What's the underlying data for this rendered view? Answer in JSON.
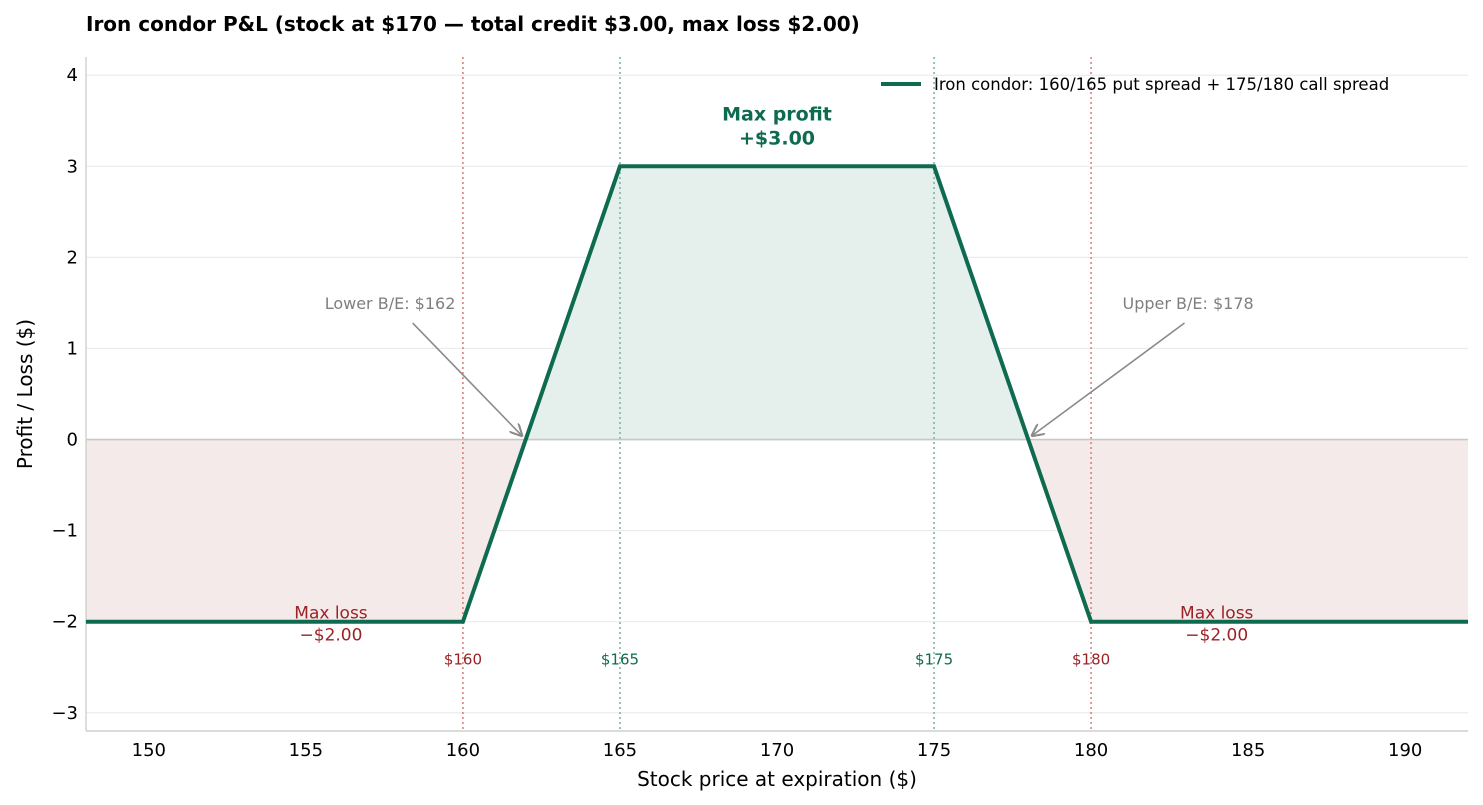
{
  "chart_data": {
    "type": "line",
    "title": "Iron condor P&L  (stock at $170 — total credit $3.00, max loss $2.00)",
    "xlabel": "Stock price at expiration ($)",
    "ylabel": "Profit / Loss ($)",
    "xlim": [
      148,
      192
    ],
    "ylim": [
      -3.2,
      4.2
    ],
    "xticks": [
      "150",
      "155",
      "160",
      "165",
      "170",
      "175",
      "180",
      "185",
      "190"
    ],
    "yticks": [
      "4",
      "3",
      "2",
      "1",
      "0",
      "−1",
      "−2",
      "−3"
    ],
    "grid": "horizontal",
    "legend_position": "top-right",
    "series": [
      {
        "name": "Iron condor: 160/165 put spread + 175/180 call spread",
        "color": "#0e6b50",
        "points": [
          [
            148,
            -2
          ],
          [
            160,
            -2
          ],
          [
            165,
            3
          ],
          [
            175,
            3
          ],
          [
            180,
            -2
          ],
          [
            192,
            -2
          ]
        ]
      }
    ],
    "shading": {
      "profit_color": "#e5f0ec",
      "loss_color": "#f5eaea"
    },
    "strikes": [
      {
        "x": 160,
        "label": "$160",
        "color": "#9b2226",
        "line_color": "#d9827f"
      },
      {
        "x": 165,
        "label": "$165",
        "color": "#0e6b50",
        "line_color": "#7fb5a4"
      },
      {
        "x": 175,
        "label": "$175",
        "color": "#0e6b50",
        "line_color": "#7fb5a4"
      },
      {
        "x": 180,
        "label": "$180",
        "color": "#9b2226",
        "line_color": "#d9827f"
      }
    ],
    "annotations": {
      "max_profit": {
        "line1": "Max profit",
        "line2": "+$3.00",
        "x": 170,
        "y": 3
      },
      "max_loss_left": {
        "line1": "Max loss",
        "line2": "−$2.00",
        "x": 155.8,
        "y": -2
      },
      "max_loss_right": {
        "line1": "Max loss",
        "line2": "−$2.00",
        "x": 184,
        "y": -2
      },
      "lower_breakeven": {
        "text": "Lower B/E: $162",
        "x": 162,
        "y": 0,
        "text_x": 155.6,
        "text_y": 1.4
      },
      "upper_breakeven": {
        "text": "Upper B/E: $178",
        "x": 178,
        "y": 0,
        "text_x": 181,
        "text_y": 1.4
      }
    }
  }
}
